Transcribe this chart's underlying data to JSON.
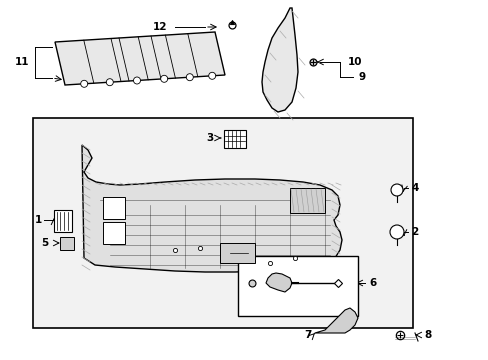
{
  "background_color": "#ffffff",
  "line_color": "#000000",
  "light_gray": "#d0d0d0",
  "part_fill": "#e8e8e8",
  "fig_width": 4.89,
  "fig_height": 3.6,
  "dpi": 100
}
